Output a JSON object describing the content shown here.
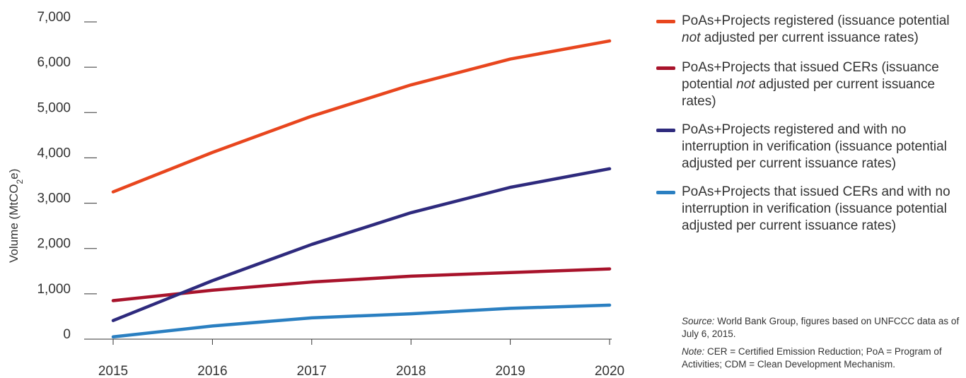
{
  "chart_data": {
    "type": "line",
    "title": "",
    "xlabel": "",
    "ylabel": "Volume (MtCO",
    "ylabel_sub": "2",
    "ylabel_tail": "e)",
    "x": [
      2015,
      2016,
      2017,
      2018,
      2019,
      2020
    ],
    "x_tick_labels": [
      "2015",
      "2016",
      "2017",
      "2018",
      "2019",
      "2020"
    ],
    "y_ticks": [
      0,
      1000,
      2000,
      3000,
      4000,
      5000,
      6000,
      7000
    ],
    "y_tick_labels": [
      "0",
      "1,000",
      "2,000",
      "3,000",
      "4,000",
      "5,000",
      "6,000",
      "7,000"
    ],
    "ylim": [
      0,
      7000
    ],
    "grid": false,
    "legend_position": "right",
    "series": [
      {
        "name": "PoAs+Projects registered (issuance potential not adjusted per current issuance rates)",
        "color": "#e8461e",
        "values": [
          3250,
          4120,
          4920,
          5610,
          6180,
          6580
        ]
      },
      {
        "name": "PoAs+Projects that issued CERs (issuance potential not adjusted per current issuance rates)",
        "color": "#a8132b",
        "values": [
          850,
          1080,
          1260,
          1390,
          1470,
          1550
        ]
      },
      {
        "name": "PoAs+Projects registered and with no interruption in verification (issuance potential adjusted per current issuance rates)",
        "color": "#2e2a7d",
        "values": [
          410,
          1290,
          2090,
          2790,
          3350,
          3760
        ]
      },
      {
        "name": "PoAs+Projects that issued CERs and with no interruption in verification (issuance potential adjusted per current issuance rates)",
        "color": "#2a7fc1",
        "values": [
          50,
          290,
          470,
          560,
          680,
          750
        ]
      }
    ]
  },
  "legend": [
    {
      "before": "PoAs+Projects registered (issuance potential ",
      "emph": "not",
      "after": " adjusted per current issuance rates)"
    },
    {
      "before": "PoAs+Projects that issued CERs (issuance potential ",
      "emph": "not",
      "after": " adjusted per current issuance rates)"
    },
    {
      "before": "PoAs+Projects registered and with no interruption in verification (issuance potential adjusted per current issuance rates)",
      "emph": "",
      "after": ""
    },
    {
      "before": "PoAs+Projects that issued CERs and with no interruption in verification (issuance potential adjusted per current issuance rates)",
      "emph": "",
      "after": ""
    }
  ],
  "source": {
    "lead": "Source:",
    "text": " World Bank Group, figures based on UNFCCC data as of July 6, 2015."
  },
  "note": {
    "lead": "Note:",
    "text": " CER = Certified Emission Reduction; PoA = Program of Activities; CDM = Clean Development Mechanism."
  }
}
